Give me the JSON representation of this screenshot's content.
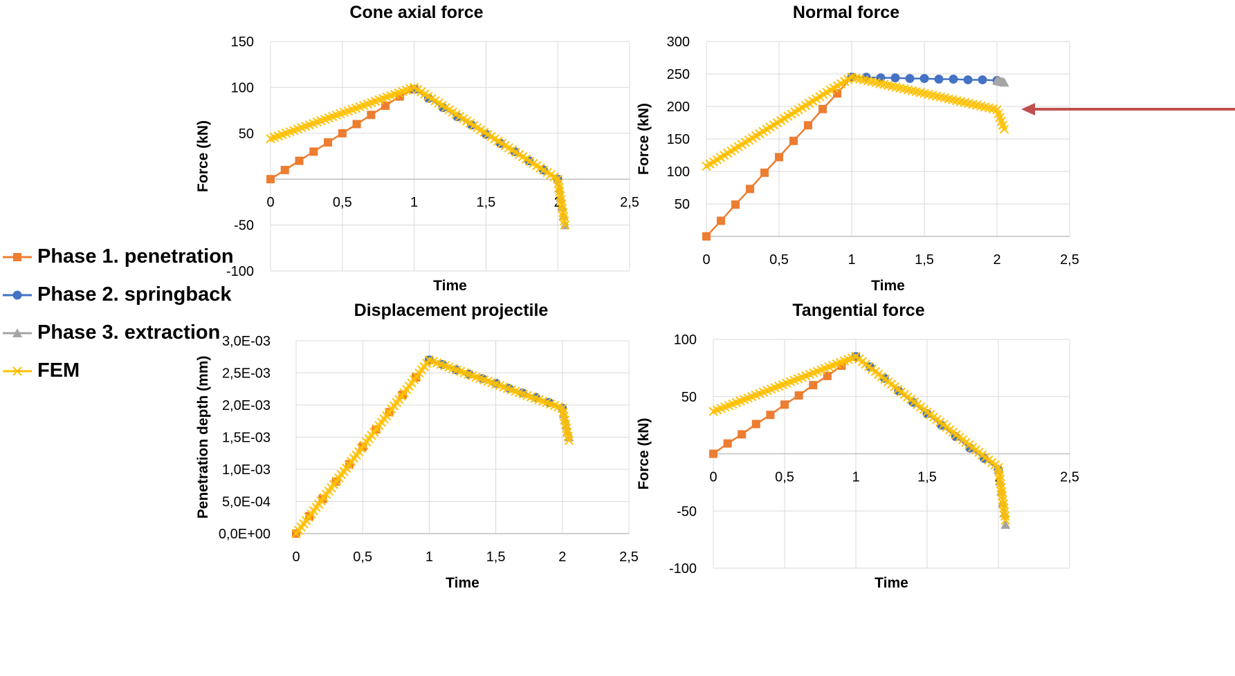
{
  "colors": {
    "phase1": "#ED7D31",
    "phase2": "#4472C4",
    "phase3": "#A5A5A5",
    "fem": "#FFC000",
    "grid": "#D9D9D9",
    "axis": "#BFBFBF",
    "arrow": "#C0504D"
  },
  "legend": {
    "items": [
      {
        "label": "Phase 1. penetration",
        "marker": "square",
        "color": "#ED7D31"
      },
      {
        "label": "Phase 2. springback",
        "marker": "circle",
        "color": "#4472C4"
      },
      {
        "label": "Phase 3. extraction",
        "marker": "triangle",
        "color": "#A5A5A5"
      },
      {
        "label": "FEM",
        "marker": "cross",
        "color": "#FFC000"
      }
    ]
  },
  "chart_data": [
    {
      "type": "line",
      "title": "Cone axial force",
      "xlabel": "Time",
      "ylabel": "Force (kN)",
      "xlim": [
        0,
        2.5
      ],
      "ylim": [
        -100,
        150
      ],
      "x_ticks": [
        "0",
        "0,5",
        "1",
        "1,5",
        "2",
        "2,5"
      ],
      "y_ticks": [
        "-100",
        "-50",
        "",
        "50",
        "100",
        "150"
      ],
      "grid": true,
      "legend_position": "left",
      "series": [
        {
          "name": "Phase 1. penetration",
          "marker": "square",
          "x": [
            0,
            0.1,
            0.2,
            0.3,
            0.4,
            0.5,
            0.6,
            0.7,
            0.8,
            0.9,
            1.0
          ],
          "y": [
            0,
            10,
            20,
            30,
            40,
            50,
            60,
            70,
            80,
            90,
            98
          ]
        },
        {
          "name": "Phase 2. springback",
          "marker": "circle",
          "x": [
            1.0,
            1.1,
            1.2,
            1.3,
            1.4,
            1.5,
            1.6,
            1.7,
            1.8,
            1.9,
            2.0
          ],
          "y": [
            98,
            88,
            78,
            68,
            59,
            49,
            39,
            30,
            20,
            10,
            0
          ]
        },
        {
          "name": "Phase 3. extraction",
          "marker": "triangle",
          "x": [
            2.0,
            2.01,
            2.02,
            2.03,
            2.04,
            2.05
          ],
          "y": [
            0,
            -10,
            -20,
            -30,
            -40,
            -50
          ]
        },
        {
          "name": "FEM",
          "marker": "cross",
          "x": [
            0,
            1.0,
            2.0,
            2.05
          ],
          "y": [
            44,
            100,
            0,
            -50
          ]
        }
      ]
    },
    {
      "type": "line",
      "title": "Normal force",
      "xlabel": "Time",
      "ylabel": "Force (kN)",
      "xlim": [
        0,
        2.5
      ],
      "ylim": [
        0,
        300
      ],
      "x_ticks": [
        "0",
        "0,5",
        "1",
        "1,5",
        "2",
        "2,5"
      ],
      "y_ticks": [
        "",
        "50",
        "100",
        "150",
        "200",
        "250",
        "300"
      ],
      "grid": true,
      "annotation": "arrow pointing at Phase 3 end",
      "series": [
        {
          "name": "Phase 1. penetration",
          "marker": "square",
          "x": [
            0,
            0.1,
            0.2,
            0.3,
            0.4,
            0.5,
            0.6,
            0.7,
            0.8,
            0.9,
            1.0
          ],
          "y": [
            0,
            24,
            49,
            73,
            98,
            122,
            147,
            171,
            196,
            220,
            245
          ]
        },
        {
          "name": "Phase 2. springback",
          "marker": "circle",
          "x": [
            1.0,
            1.1,
            1.2,
            1.3,
            1.4,
            1.5,
            1.6,
            1.7,
            1.8,
            1.9,
            2.0
          ],
          "y": [
            245,
            245,
            244,
            244,
            243,
            243,
            242,
            242,
            241,
            241,
            240
          ]
        },
        {
          "name": "Phase 3. extraction",
          "marker": "triangle",
          "x": [
            2.0,
            2.01,
            2.02,
            2.03,
            2.04,
            2.05
          ],
          "y": [
            240,
            239,
            239,
            238,
            238,
            237
          ]
        },
        {
          "name": "FEM",
          "marker": "cross",
          "x": [
            0,
            1.0,
            2.0,
            2.05
          ],
          "y": [
            108,
            245,
            195,
            165
          ]
        }
      ]
    },
    {
      "type": "line",
      "title": "Displacement projectile",
      "xlabel": "Time",
      "ylabel": "Penetration depth (mm)",
      "xlim": [
        0,
        2.5
      ],
      "ylim": [
        0,
        0.003
      ],
      "x_ticks": [
        "0",
        "0,5",
        "1",
        "1,5",
        "2",
        "2,5"
      ],
      "y_ticks": [
        "0,0E+00",
        "5,0E-04",
        "1,0E-03",
        "1,5E-03",
        "2,0E-03",
        "2,5E-03",
        "3,0E-03"
      ],
      "grid": true,
      "series": [
        {
          "name": "Phase 1. penetration",
          "marker": "square",
          "x": [
            0,
            0.1,
            0.2,
            0.3,
            0.4,
            0.5,
            0.6,
            0.7,
            0.8,
            0.9,
            1.0
          ],
          "y": [
            0,
            0.00027,
            0.00054,
            0.00081,
            0.00108,
            0.00135,
            0.00162,
            0.00189,
            0.00216,
            0.00243,
            0.0027
          ]
        },
        {
          "name": "Phase 2. springback",
          "marker": "circle",
          "x": [
            1.0,
            1.1,
            1.2,
            1.3,
            1.4,
            1.5,
            1.6,
            1.7,
            1.8,
            1.9,
            2.0
          ],
          "y": [
            0.0027,
            0.00263,
            0.00255,
            0.00248,
            0.00241,
            0.00234,
            0.00226,
            0.00219,
            0.00212,
            0.00204,
            0.00195
          ]
        },
        {
          "name": "Phase 3. extraction",
          "marker": "triangle",
          "x": [
            2.0,
            2.01,
            2.02,
            2.03,
            2.04,
            2.05
          ],
          "y": [
            0.00195,
            0.00186,
            0.00177,
            0.00168,
            0.00159,
            0.0015
          ]
        },
        {
          "name": "FEM",
          "marker": "cross",
          "x": [
            0,
            1.0,
            2.0,
            2.05
          ],
          "y": [
            0,
            0.0027,
            0.00195,
            0.00145
          ]
        }
      ]
    },
    {
      "type": "line",
      "title": "Tangential force",
      "xlabel": "Time",
      "ylabel": "Force (kN)",
      "xlim": [
        0,
        2.5
      ],
      "ylim": [
        -100,
        100
      ],
      "x_ticks": [
        "0",
        "0,5",
        "1",
        "1,5",
        "2",
        "2,5"
      ],
      "y_ticks": [
        "-100",
        "-50",
        "",
        "50",
        "100"
      ],
      "grid": true,
      "series": [
        {
          "name": "Phase 1. penetration",
          "marker": "square",
          "x": [
            0,
            0.1,
            0.2,
            0.3,
            0.4,
            0.5,
            0.6,
            0.7,
            0.8,
            0.9,
            1.0
          ],
          "y": [
            0,
            9,
            17,
            26,
            34,
            43,
            51,
            60,
            68,
            77,
            85
          ]
        },
        {
          "name": "Phase 2. springback",
          "marker": "circle",
          "x": [
            1.0,
            1.1,
            1.2,
            1.3,
            1.4,
            1.5,
            1.6,
            1.7,
            1.8,
            1.9,
            2.0
          ],
          "y": [
            85,
            76,
            66,
            55,
            45,
            35,
            25,
            15,
            5,
            -4,
            -14
          ]
        },
        {
          "name": "Phase 3. extraction",
          "marker": "triangle",
          "x": [
            2.0,
            2.01,
            2.02,
            2.03,
            2.04,
            2.05
          ],
          "y": [
            -14,
            -24,
            -33,
            -43,
            -52,
            -62
          ]
        },
        {
          "name": "FEM",
          "marker": "cross",
          "x": [
            0,
            1.0,
            2.0,
            2.05
          ],
          "y": [
            37,
            85,
            -12,
            -58
          ]
        }
      ]
    }
  ]
}
